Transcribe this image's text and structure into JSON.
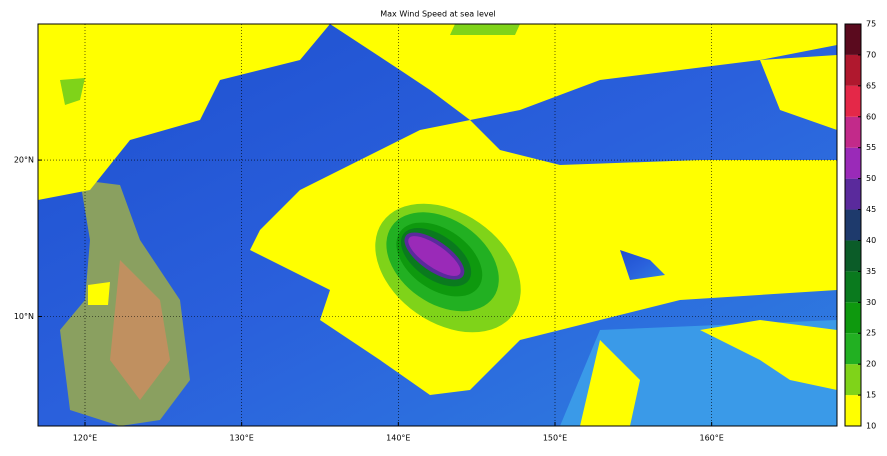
{
  "chart_data": {
    "type": "map",
    "title": "Max Wind Speed at sea level",
    "xlim": [
      117,
      168
    ],
    "ylim": [
      3,
      28.7
    ],
    "xticks": [
      {
        "value": 120,
        "label": "120°E"
      },
      {
        "value": 130,
        "label": "130°E"
      },
      {
        "value": 140,
        "label": "140°E"
      },
      {
        "value": 150,
        "label": "150°E"
      },
      {
        "value": 160,
        "label": "160°E"
      }
    ],
    "yticks": [
      {
        "value": 10,
        "label": "10°N"
      },
      {
        "value": 20,
        "label": "20°N"
      }
    ],
    "grid": true,
    "colorbar": {
      "ticks": [
        10,
        15,
        20,
        25,
        30,
        35,
        40,
        45,
        50,
        55,
        60,
        65,
        70,
        75
      ],
      "colors": [
        "#ffff00",
        "#7fd319",
        "#22b022",
        "#0e990e",
        "#0a7a1e",
        "#0b5c28",
        "#1e3a6c",
        "#5a2a9c",
        "#9a2ab8",
        "#c22a8a",
        "#e42848",
        "#b0182e",
        "#5a0a1e"
      ]
    }
  }
}
